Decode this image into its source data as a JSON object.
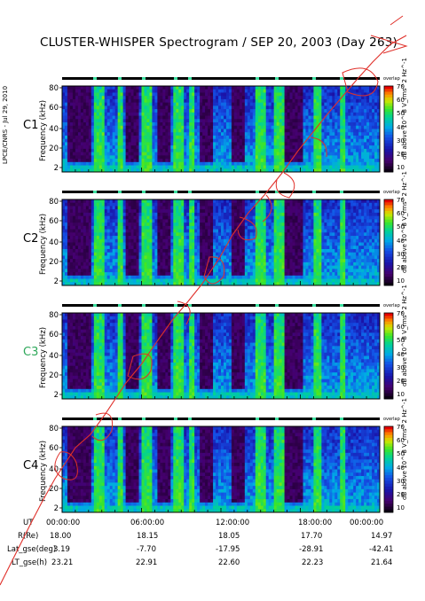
{
  "title": "CLUSTER-WHISPER Spectrogram / SEP 20, 2003 (Day 263)",
  "credit": "LPCE/CNRS - Jul 29, 2010",
  "colors": {
    "c3_label": "#2ea85a",
    "watermark": "#e0302a"
  },
  "chart_data": {
    "type": "heatmap",
    "panels": [
      {
        "name": "C1",
        "ylabel": "Frequency (kHz)"
      },
      {
        "name": "C2",
        "ylabel": "Frequency (kHz)"
      },
      {
        "name": "C3",
        "ylabel": "Frequency (kHz)"
      },
      {
        "name": "C4",
        "ylabel": "Frequency (kHz)"
      }
    ],
    "y_ticks": [
      "80",
      "60",
      "40",
      "20",
      "2"
    ],
    "ylim": [
      2,
      80
    ],
    "colorbar": {
      "label": "dB above 10^-8 V_rms^2 Hz^-1",
      "header": "overlap",
      "ticks": [
        "70",
        "60",
        "50",
        "40",
        "30",
        "20",
        "10"
      ],
      "range": [
        10,
        70
      ]
    },
    "x_label": "UT",
    "x_ticks": [
      "00:00:00",
      "06:00:00",
      "12:00:00",
      "18:00:00",
      "00:00:00"
    ],
    "ephemeris": [
      {
        "label": "R(Re)",
        "values": [
          "18.00",
          "18.15",
          "18.05",
          "17.70",
          "14.97"
        ]
      },
      {
        "label": "Lat_gse(deg)",
        "values": [
          "3.19",
          "-7.70",
          "-17.95",
          "-28.91",
          "-42.41"
        ]
      },
      {
        "label": "LT_gse(h)",
        "values": [
          "23.21",
          "22.91",
          "22.60",
          "22.23",
          "21.64"
        ]
      }
    ]
  }
}
